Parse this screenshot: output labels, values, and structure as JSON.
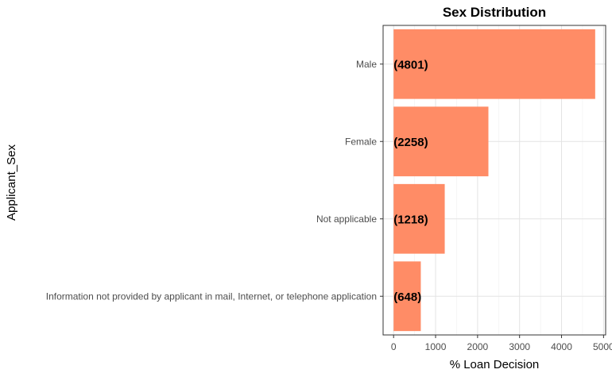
{
  "chart_data": {
    "type": "bar",
    "orientation": "horizontal",
    "title": "Sex Distribution",
    "xlabel": "% Loan Decision",
    "ylabel": "Applicant_Sex",
    "categories": [
      "Male",
      "Female",
      "Not applicable",
      "Information not provided by applicant in mail, Internet, or telephone application"
    ],
    "values": [
      4801,
      2258,
      1218,
      648
    ],
    "data_labels": [
      "(4801)",
      "(2258)",
      "(1218)",
      "(648)"
    ],
    "xticks": [
      0,
      1000,
      2000,
      3000,
      4000,
      5000
    ],
    "xtick_labels": [
      "0",
      "1000",
      "2000",
      "3000",
      "4000",
      "5000"
    ],
    "xlim": [
      -250,
      5050
    ],
    "bar_color": "#ff8c66",
    "grid": true,
    "legend": "none"
  }
}
